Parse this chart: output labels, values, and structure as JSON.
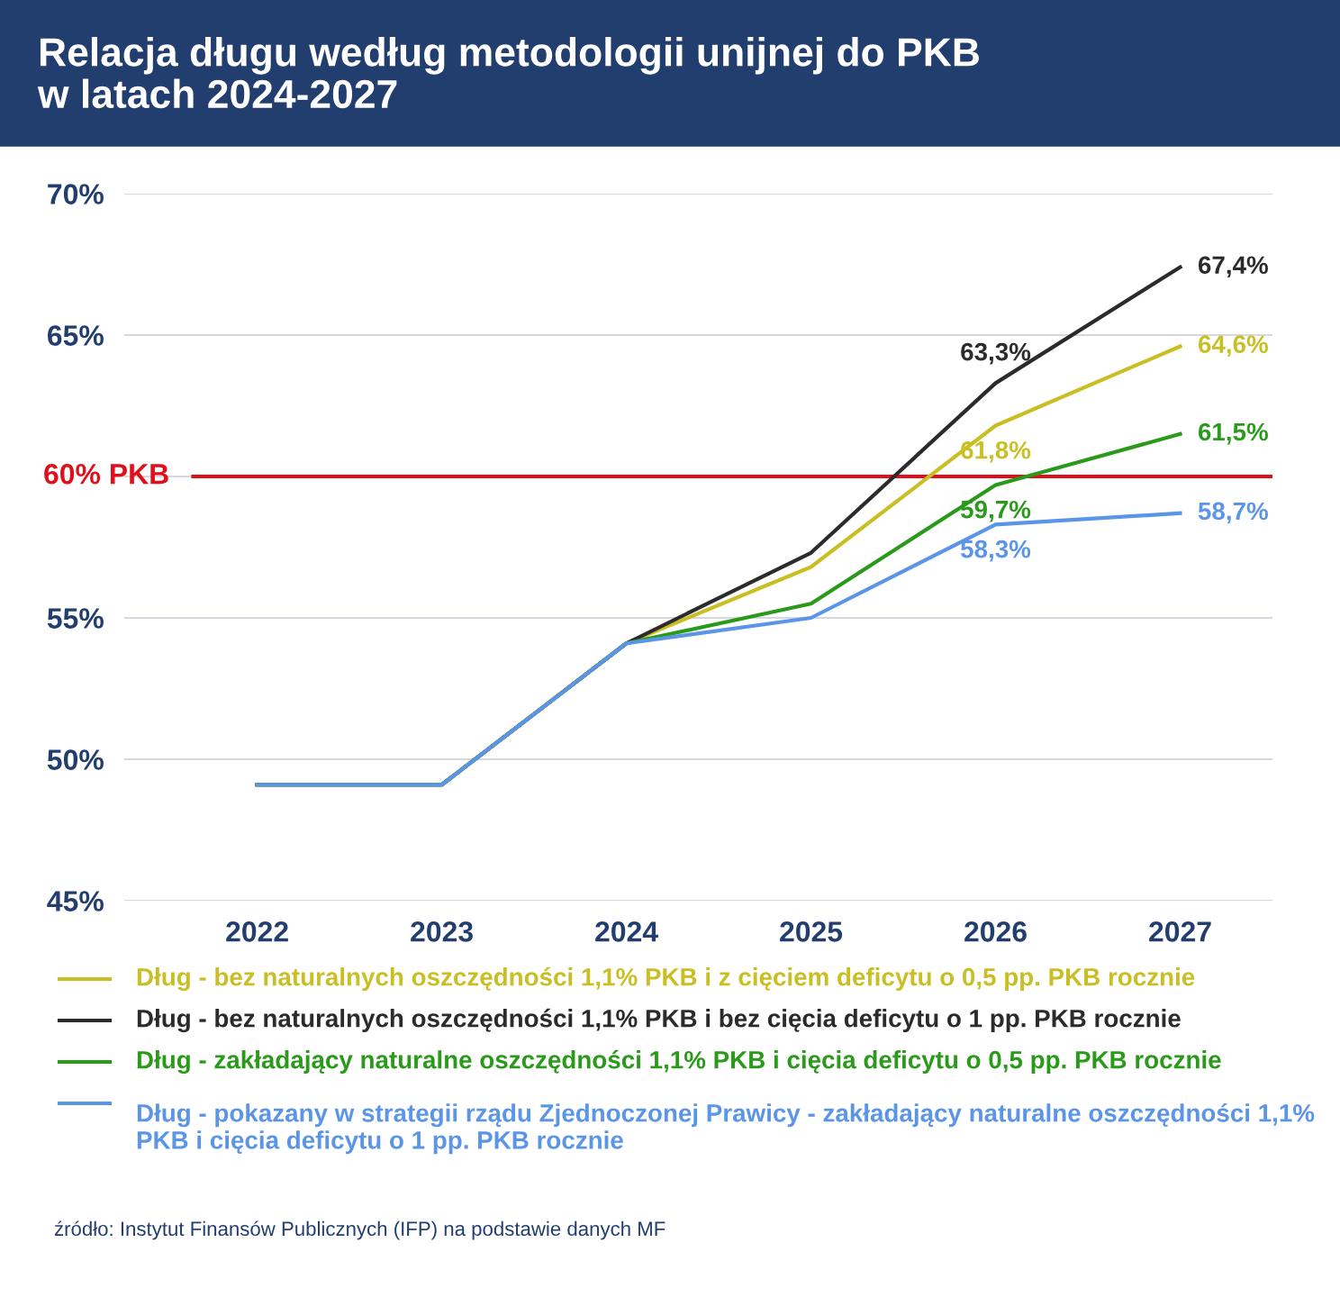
{
  "chart_data": {
    "type": "line",
    "title": "Relacja długu według metodologii unijnej do PKB\nw latach 2024-2027",
    "categories": [
      "2022",
      "2023",
      "2024",
      "2025",
      "2026",
      "2027"
    ],
    "series": [
      {
        "name": "Dług - bez naturalnych oszczędności 1,1% PKB i z cięciem deficytu o 0,5 pp. PKB rocznie",
        "color": "#c9bf24",
        "values": [
          49.1,
          49.1,
          54.1,
          56.8,
          61.8,
          64.6
        ],
        "value_labels": [
          null,
          null,
          null,
          null,
          "61,8%",
          "64,6%"
        ]
      },
      {
        "name": "Dług - bez naturalnych oszczędności 1,1% PKB i bez cięcia deficytu o 1 pp. PKB rocznie",
        "color": "#2b2b2b",
        "values": [
          49.1,
          49.1,
          54.1,
          57.3,
          63.3,
          67.4
        ],
        "value_labels": [
          null,
          null,
          null,
          null,
          "63,3%",
          "67,4%"
        ]
      },
      {
        "name": "Dług - zakładający naturalne oszczędności 1,1% PKB i cięcia deficytu o 0,5 pp. PKB rocznie",
        "color": "#2a9a1a",
        "values": [
          49.1,
          49.1,
          54.1,
          55.5,
          59.7,
          61.5
        ],
        "value_labels": [
          null,
          null,
          null,
          null,
          "59,7%",
          "61,5%"
        ]
      },
      {
        "name": "Dług - pokazany w strategii rządu Zjednoczonej Prawicy - zakładający naturalne oszczędności 1,1% PKB i cięcia deficytu o 1 pp. PKB rocznie",
        "color": "#5b95e8",
        "values": [
          49.1,
          49.1,
          54.1,
          55.0,
          58.3,
          58.7
        ],
        "value_labels": [
          null,
          null,
          null,
          null,
          "58,3%",
          "58,7%"
        ]
      }
    ],
    "ylim": [
      45,
      70
    ],
    "yticks": [
      {
        "value": 45,
        "label": "45%"
      },
      {
        "value": 50,
        "label": "50%"
      },
      {
        "value": 55,
        "label": "55%"
      },
      {
        "value": 60,
        "label": null
      },
      {
        "value": 65,
        "label": "65%"
      },
      {
        "value": 70,
        "label": "70%"
      }
    ],
    "ref_lines": [
      {
        "axis": "y",
        "value": 60,
        "label": "60% PKB",
        "color": "#e0101a"
      }
    ],
    "grid": "y",
    "legend": "bottom",
    "marker": "none",
    "line_style": "solid",
    "annotations": [
      "źródło: Instytut Finansów Publicznych (IFP) na podstawie danych MF"
    ]
  }
}
